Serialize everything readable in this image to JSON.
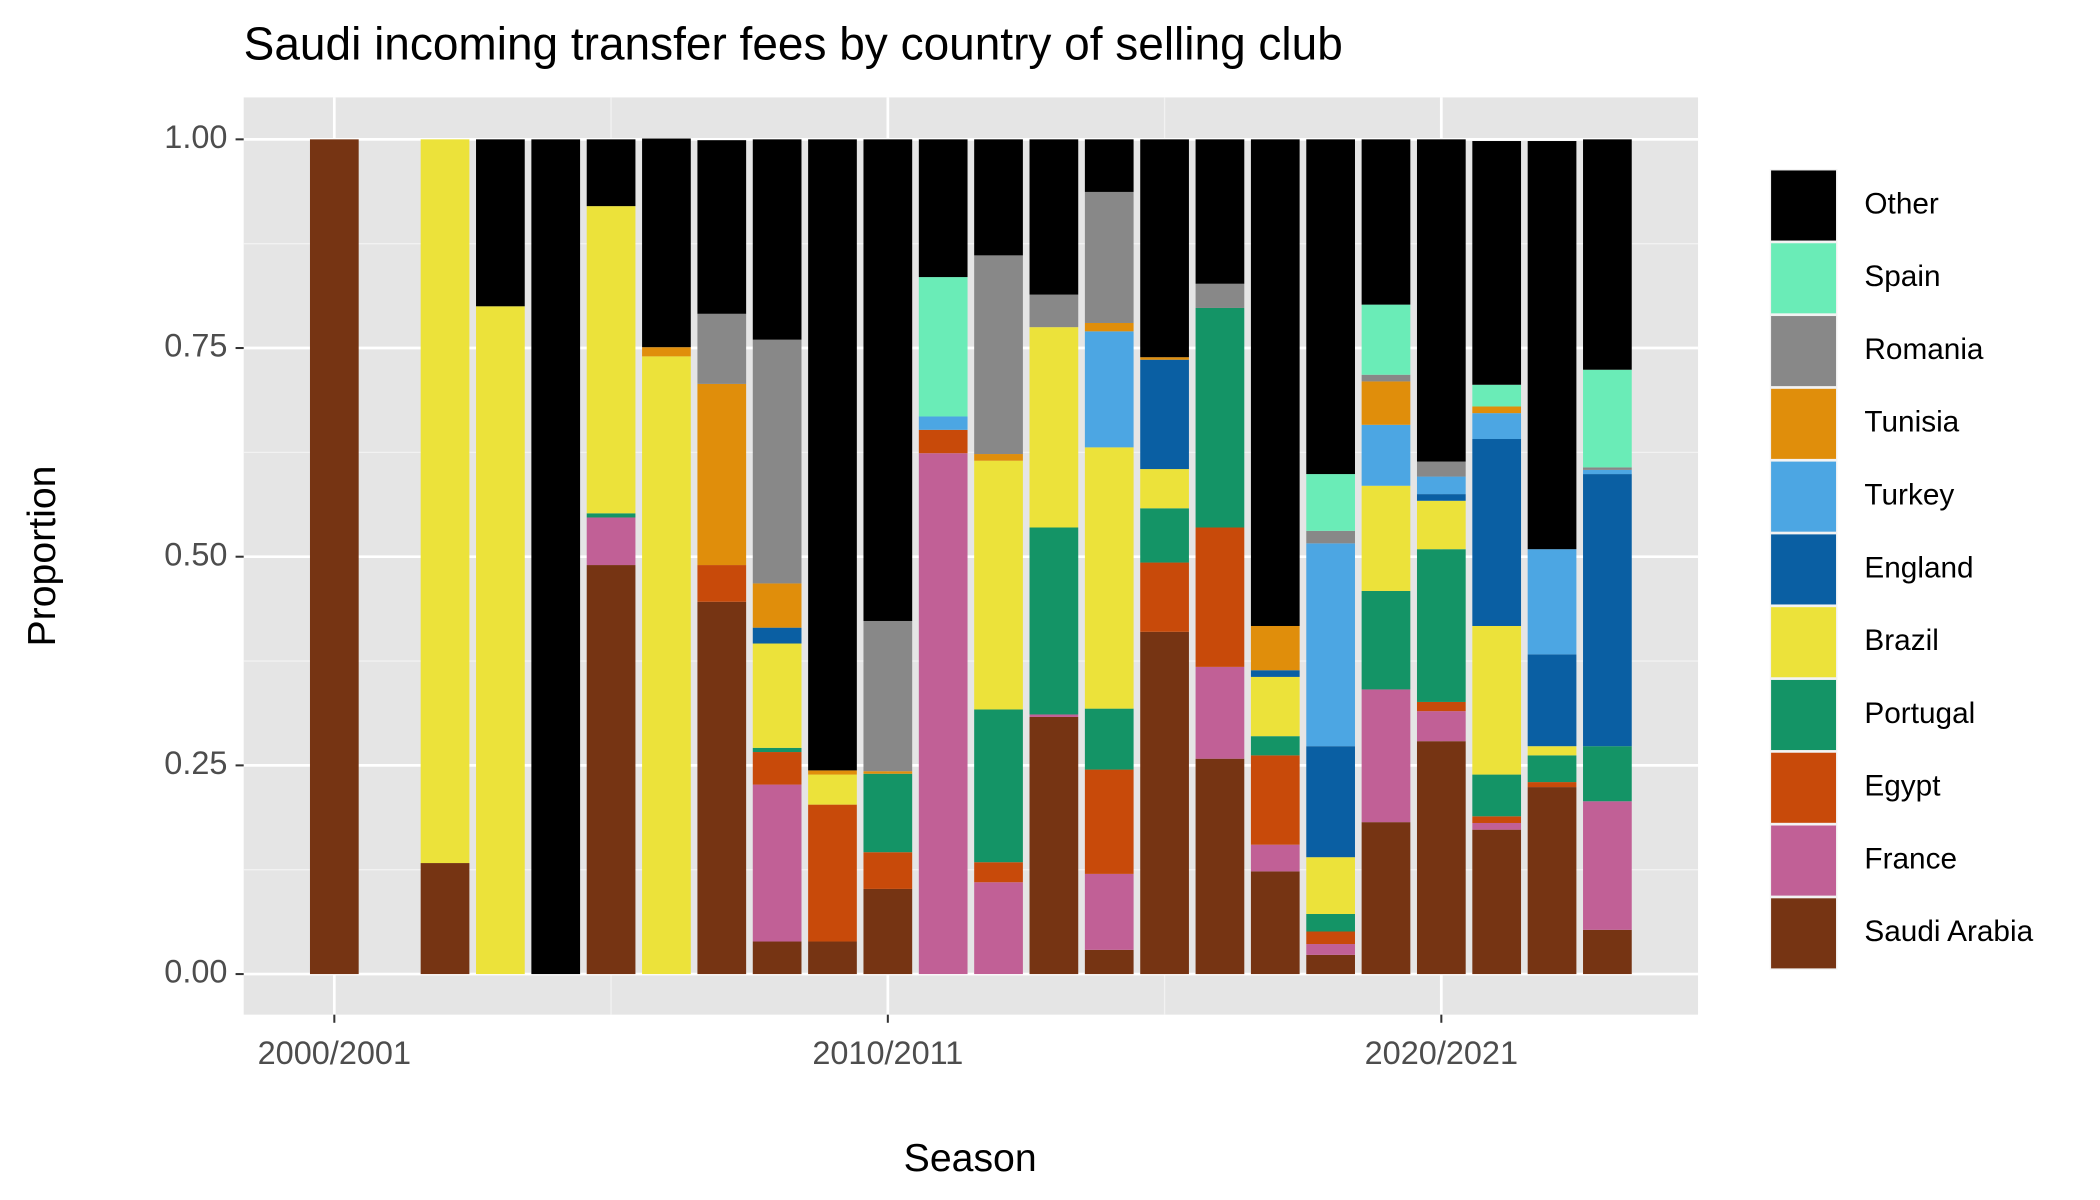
{
  "chart_data": {
    "type": "stacked_bar",
    "title": "Saudi incoming transfer fees by country of selling club",
    "x_label": "Season",
    "y_label": "Proportion",
    "categories": [
      "2000/2001",
      null,
      null,
      null,
      null,
      null,
      null,
      null,
      null,
      null,
      "2010/2011",
      null,
      null,
      null,
      null,
      null,
      null,
      null,
      null,
      null,
      "2020/2021",
      null,
      null,
      null
    ],
    "ylim": [
      0,
      1
    ],
    "yticks": [
      {
        "value": 0,
        "label": "0.00"
      },
      {
        "value": 0.25,
        "label": "0.25"
      },
      {
        "value": 0.5,
        "label": "0.50"
      },
      {
        "value": 0.75,
        "label": "0.75"
      },
      {
        "value": 1,
        "label": "1.00"
      }
    ],
    "grid": true,
    "legend": "right",
    "series": [
      {
        "name": "Saudi Arabia",
        "color": "#763413",
        "values": [
          1,
          null,
          0.133,
          0,
          0,
          0.49,
          0,
          0.446,
          0.039,
          0.039,
          0.102,
          0,
          0,
          0.308,
          0.029,
          0.41,
          0.258,
          0.123,
          0.023,
          0.182,
          0.279,
          0.173,
          0.224,
          0.053
        ]
      },
      {
        "name": "France",
        "color": "#c16096",
        "values": [
          0,
          null,
          0,
          0,
          0,
          0.057,
          0,
          0,
          0.188,
          0,
          0,
          0.624,
          0.11,
          0.003,
          0.091,
          0,
          0.11,
          0.032,
          0.013,
          0.159,
          0.036,
          0.008,
          0,
          0.154
        ]
      },
      {
        "name": "Egypt",
        "color": "#c84a0a",
        "values": [
          0,
          null,
          0,
          0,
          0,
          0,
          0,
          0.044,
          0.039,
          0.164,
          0.044,
          0.028,
          0.024,
          0,
          0.125,
          0.083,
          0.167,
          0.107,
          0.015,
          0,
          0.011,
          0.008,
          0.006,
          0
        ]
      },
      {
        "name": "Portugal",
        "color": "#149466",
        "values": [
          0,
          null,
          0,
          0,
          0,
          0.005,
          0,
          0,
          0.005,
          0,
          0.094,
          0,
          0.183,
          0.224,
          0.073,
          0.065,
          0.263,
          0.023,
          0.021,
          0.118,
          0.183,
          0.05,
          0.032,
          0.066
        ]
      },
      {
        "name": "Brazil",
        "color": "#ece23a",
        "values": [
          0,
          null,
          0.867,
          0.8,
          0,
          0.368,
          0.74,
          0,
          0.125,
          0.036,
          0,
          0,
          0.298,
          0.24,
          0.313,
          0.047,
          0,
          0.071,
          0.068,
          0.126,
          0.058,
          0.178,
          0.011,
          0
        ]
      },
      {
        "name": "England",
        "color": "#0a5fa3",
        "values": [
          0,
          null,
          0,
          0,
          0,
          0,
          0,
          0,
          0.019,
          0,
          0,
          0,
          0,
          0,
          0,
          0.131,
          0,
          0.008,
          0.133,
          0,
          0.008,
          0.224,
          0.11,
          0.326
        ]
      },
      {
        "name": "Turkey",
        "color": "#4ca6e3",
        "values": [
          0,
          null,
          0,
          0,
          0,
          0,
          0,
          0,
          0,
          0,
          0,
          0.016,
          0,
          0,
          0.139,
          0,
          0,
          0,
          0.243,
          0.073,
          0.021,
          0.031,
          0.126,
          0.005
        ]
      },
      {
        "name": "Tunisia",
        "color": "#e08e0b",
        "values": [
          0,
          null,
          0,
          0,
          0,
          0,
          0.011,
          0.217,
          0.053,
          0.005,
          0.003,
          0,
          0.008,
          0,
          0.01,
          0.003,
          0,
          0.053,
          0,
          0.052,
          0,
          0.008,
          0,
          0
        ]
      },
      {
        "name": "Romania",
        "color": "#888888",
        "values": [
          0,
          null,
          0,
          0,
          0,
          0,
          0,
          0.084,
          0.292,
          0,
          0.18,
          0,
          0.238,
          0.039,
          0.157,
          0,
          0.029,
          0,
          0.015,
          0.008,
          0.018,
          0,
          0,
          0.003
        ]
      },
      {
        "name": "Spain",
        "color": "#6aecb7",
        "values": [
          0,
          null,
          0,
          0,
          0,
          0,
          0,
          0,
          0,
          0,
          0,
          0.167,
          0,
          0,
          0,
          0,
          0,
          0,
          0.068,
          0.084,
          0,
          0.026,
          0,
          0.117
        ]
      },
      {
        "name": "Other",
        "color": "#000000",
        "values": [
          0,
          null,
          0,
          0.2,
          1,
          0.08,
          0.25,
          0.208,
          0.24,
          0.756,
          0.577,
          0.165,
          0.139,
          0.186,
          0.063,
          0.261,
          0.173,
          0.583,
          0.401,
          0.198,
          0.386,
          0.292,
          0.489,
          0.276
        ]
      }
    ]
  }
}
